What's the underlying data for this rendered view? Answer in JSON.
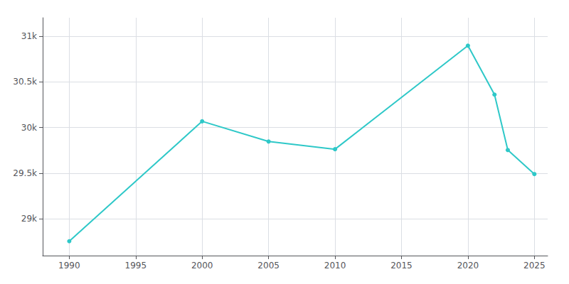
{
  "chart_data": {
    "type": "line",
    "x": [
      1990,
      2000,
      2005,
      2010,
      2020,
      2022,
      2023,
      2025
    ],
    "values": [
      28757,
      30068,
      29847,
      29763,
      30895,
      30360,
      29754,
      29491
    ],
    "color": "#2ec8c8",
    "marker": "circle",
    "xlim": [
      1988,
      2026
    ],
    "ylim": [
      28600,
      31200
    ],
    "xticks": [
      1990,
      1995,
      2000,
      2005,
      2010,
      2015,
      2020,
      2025
    ],
    "yticks": [
      {
        "value": 29000,
        "label": "29k"
      },
      {
        "value": 29500,
        "label": "29.5k"
      },
      {
        "value": 30000,
        "label": "30k"
      },
      {
        "value": 30500,
        "label": "30.5k"
      },
      {
        "value": 31000,
        "label": "31k"
      }
    ],
    "grid": true
  }
}
